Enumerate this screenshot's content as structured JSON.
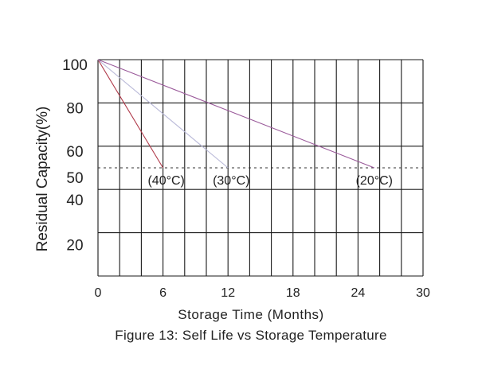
{
  "chart_data": {
    "type": "line",
    "title": "Figure 13:  Self  Life vs Storage Temperature",
    "xlabel": "Storage Time (Months)",
    "ylabel": "Residual Capacity(%)",
    "xlim": [
      0,
      30
    ],
    "ylim": [
      0,
      100
    ],
    "x_ticks": [
      0,
      6,
      12,
      18,
      24,
      30
    ],
    "x_tick_labels": [
      "0",
      "6",
      "12",
      "18",
      "24",
      "30"
    ],
    "y_ticks": [
      20,
      40,
      50,
      60,
      80,
      100
    ],
    "y_tick_labels": [
      "20",
      "40",
      "50",
      "60",
      "80",
      "100"
    ],
    "grid": true,
    "x_gridlines": [
      0,
      2,
      4,
      6,
      8,
      10,
      12,
      14,
      16,
      18,
      20,
      22,
      24,
      26,
      28,
      30
    ],
    "y_gridlines": [
      0,
      20,
      40,
      60,
      80,
      100
    ],
    "reference_line": {
      "y": 50,
      "style": "dashed"
    },
    "series": [
      {
        "name": "(40°C)",
        "x": [
          0,
          6
        ],
        "y": [
          100,
          50
        ],
        "color": "#b03a4a",
        "label_x": 6.3,
        "label_y": 50
      },
      {
        "name": "(30°C)",
        "x": [
          0,
          12
        ],
        "y": [
          100,
          50
        ],
        "color": "#b9b9d8",
        "label_x": 12.3,
        "label_y": 50
      },
      {
        "name": "(20°C)",
        "x": [
          0,
          25.5
        ],
        "y": [
          100,
          50
        ],
        "color": "#9a5a9a",
        "label_x": 25.5,
        "label_y": 50
      }
    ]
  }
}
